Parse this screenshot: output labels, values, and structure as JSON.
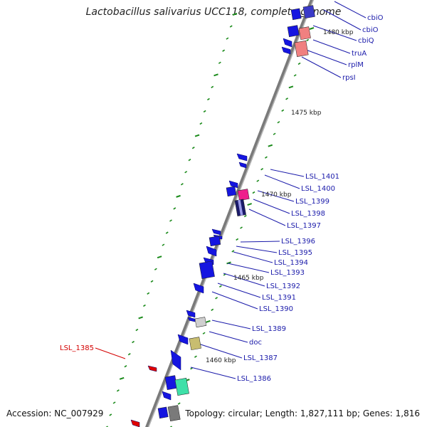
{
  "title": "Lactobacillus salivarius UCC118, complete genome",
  "footer": {
    "accession": "Accession: NC_007929",
    "topology": "Topology: circular; Length: 1,827,111 bp; Genes: 1,816"
  },
  "scale_labels": [
    "1480 kbp",
    "1475 kbp",
    "1470 kbp",
    "1465 kbp",
    "1460 kbp"
  ],
  "gene_labels": [
    "cbiO",
    "cbiO",
    "cbiQ",
    "truA",
    "rplM",
    "rpsI",
    "LSL_1401",
    "LSL_1400",
    "LSL_1399",
    "LSL_1398",
    "LSL_1397",
    "LSL_1396",
    "LSL_1395",
    "LSL_1394",
    "LSL_1393",
    "LSL_1392",
    "LSL_1391",
    "LSL_1390",
    "LSL_1389",
    "doc",
    "LSL_1387",
    "LSL_1386",
    "LSL_1385"
  ],
  "colors": {
    "backbone": "#8a8a8a",
    "gene_forward": "#1515e0",
    "rrna_trna": "#f08080",
    "highlight_pink": "#ee1e8c",
    "label_blue": "#1a1aaa",
    "label_red": "#d40000",
    "tick_green": "#1a8a1a"
  }
}
